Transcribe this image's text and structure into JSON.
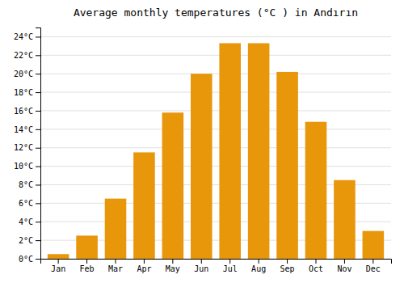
{
  "chart_data": {
    "type": "bar",
    "title": "Average monthly temperatures (°C ) in Andırın",
    "categories": [
      "Jan",
      "Feb",
      "Mar",
      "Apr",
      "May",
      "Jun",
      "Jul",
      "Aug",
      "Sep",
      "Oct",
      "Nov",
      "Dec"
    ],
    "values": [
      0.5,
      2.5,
      6.5,
      11.5,
      15.8,
      20.0,
      23.3,
      23.3,
      20.2,
      14.8,
      8.5,
      3.0
    ],
    "color": "#E8960A",
    "ylim": [
      0,
      25
    ],
    "yticks": [
      {
        "value": 0,
        "label": "0°C"
      },
      {
        "value": 2,
        "label": "2°C"
      },
      {
        "value": 4,
        "label": "4°C"
      },
      {
        "value": 6,
        "label": "6°C"
      },
      {
        "value": 8,
        "label": "8°C"
      },
      {
        "value": 10,
        "label": "10°C"
      },
      {
        "value": 12,
        "label": "12°C"
      },
      {
        "value": 14,
        "label": "14°C"
      },
      {
        "value": 16,
        "label": "16°C"
      },
      {
        "value": 18,
        "label": "18°C"
      },
      {
        "value": 20,
        "label": "20°C"
      },
      {
        "value": 22,
        "label": "22°C"
      },
      {
        "value": 24,
        "label": "24°C"
      }
    ],
    "grid": true
  }
}
